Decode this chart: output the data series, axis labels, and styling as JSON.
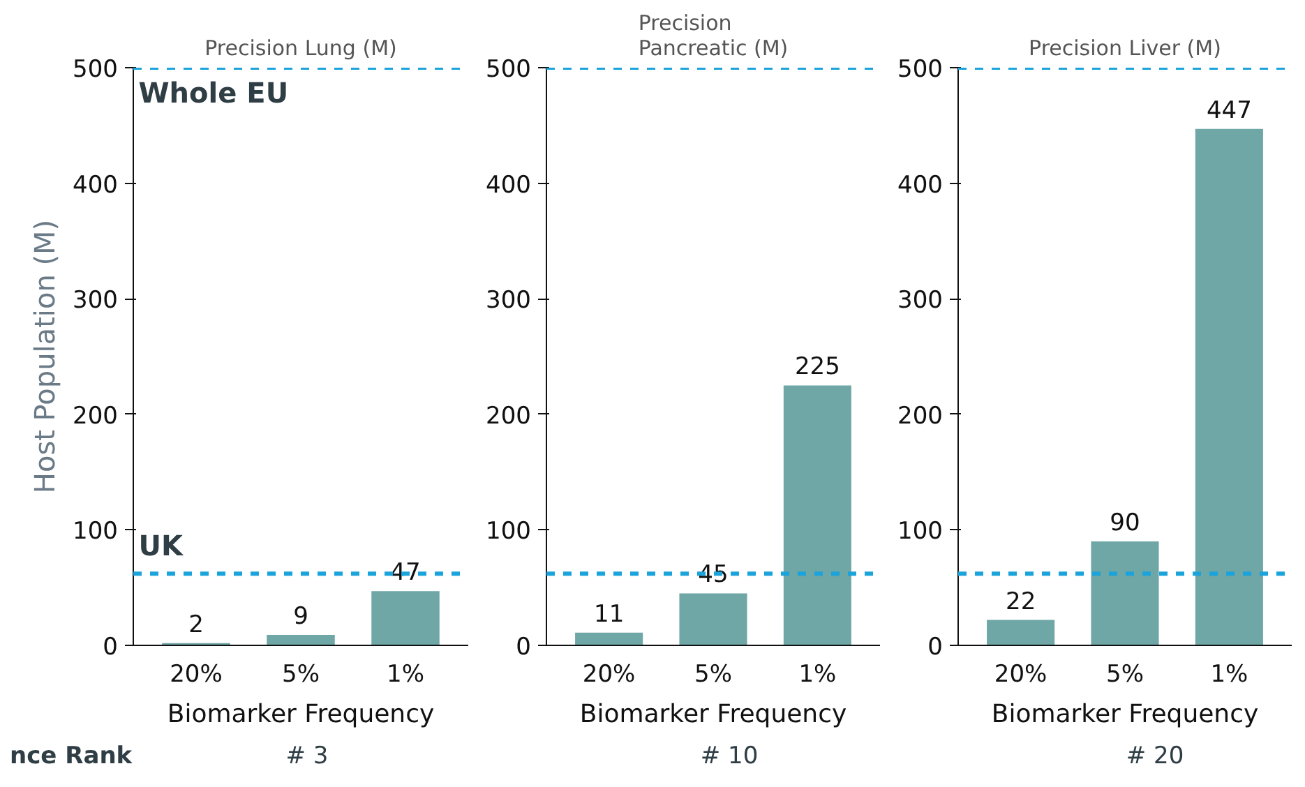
{
  "chart_data": [
    {
      "type": "bar",
      "title": "Precision Lung (M)",
      "xlabel": "Biomarker Frequency",
      "ylabel": "Host Population (M)",
      "categories": [
        "20%",
        "5%",
        "1%"
      ],
      "values": [
        2,
        9,
        47
      ],
      "color": "#6fa6a6",
      "ylim": [
        0,
        500
      ],
      "yticks": [
        0,
        100,
        200,
        300,
        400,
        500
      ],
      "data_labels": true,
      "grid": false,
      "ref_lines": [
        {
          "axis": "y",
          "value": 500,
          "label": "Whole EU",
          "color": "#1ba3dc",
          "line_style": "dashed"
        },
        {
          "axis": "y",
          "value": 62,
          "label": "UK",
          "color": "#1ba3dc",
          "line_style": "dashed"
        }
      ],
      "annotations": [
        "nce Rank",
        "# 3"
      ]
    },
    {
      "type": "bar",
      "title": "Precision\nPancreatic (M)",
      "xlabel": "Biomarker Frequency",
      "categories": [
        "20%",
        "5%",
        "1%"
      ],
      "values": [
        11,
        45,
        225
      ],
      "color": "#6fa6a6",
      "ylim": [
        0,
        500
      ],
      "yticks": [
        0,
        100,
        200,
        300,
        400,
        500
      ],
      "data_labels": true,
      "grid": false,
      "ref_lines": [
        {
          "axis": "y",
          "value": 500,
          "color": "#1ba3dc",
          "line_style": "dashed"
        },
        {
          "axis": "y",
          "value": 62,
          "color": "#1ba3dc",
          "line_style": "dashed"
        }
      ],
      "annotations": [
        "# 10"
      ]
    },
    {
      "type": "bar",
      "title": "Precision Liver (M)",
      "xlabel": "Biomarker Frequency",
      "categories": [
        "20%",
        "5%",
        "1%"
      ],
      "values": [
        22,
        90,
        447
      ],
      "color": "#6fa6a6",
      "ylim": [
        0,
        500
      ],
      "yticks": [
        0,
        100,
        200,
        300,
        400,
        500
      ],
      "data_labels": true,
      "grid": false,
      "ref_lines": [
        {
          "axis": "y",
          "value": 500,
          "color": "#1ba3dc",
          "line_style": "dashed"
        },
        {
          "axis": "y",
          "value": 62,
          "color": "#1ba3dc",
          "line_style": "dashed"
        }
      ],
      "annotations": [
        "# 20"
      ]
    }
  ]
}
